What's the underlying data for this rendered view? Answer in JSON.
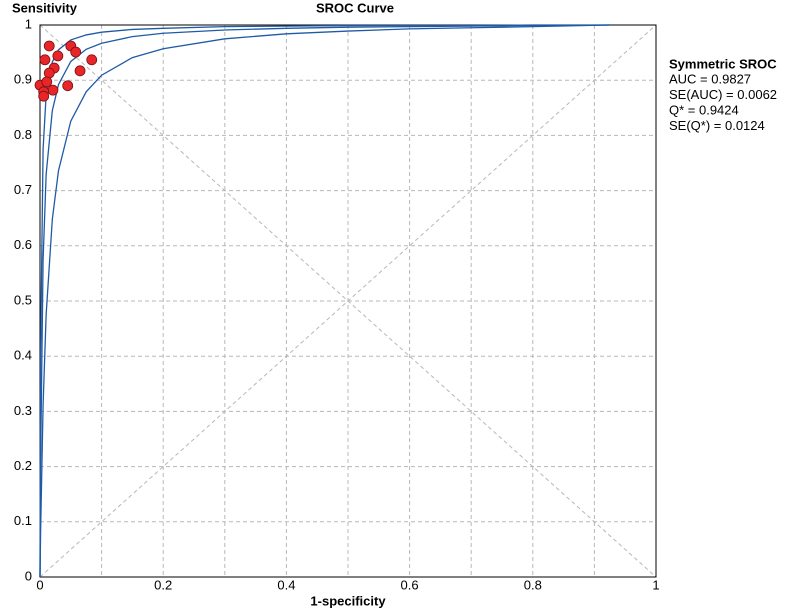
{
  "chart_data": {
    "type": "scatter",
    "title": "SROC Curve",
    "xlabel": "1-specificity",
    "ylabel": "Sensitivity",
    "xlim": [
      0,
      1
    ],
    "ylim": [
      0,
      1
    ],
    "xticks": [
      0,
      0.2,
      0.4,
      0.6,
      0.8,
      1
    ],
    "minor_xticks": [
      0.1,
      0.3,
      0.5,
      0.7,
      0.9
    ],
    "yticks": [
      0,
      0.1,
      0.2,
      0.3,
      0.4,
      0.5,
      0.6,
      0.7,
      0.8,
      0.9,
      1
    ],
    "grid": true,
    "points": {
      "color": "#e8262a",
      "x": [
        0.015,
        0.008,
        0.029,
        0.05,
        0.058,
        0.084,
        0.065,
        0.023,
        0.015,
        0.045,
        0.021,
        0,
        0.006,
        0.006,
        0.011
      ],
      "y": [
        0.962,
        0.937,
        0.944,
        0.962,
        0.951,
        0.937,
        0.917,
        0.922,
        0.913,
        0.89,
        0.882,
        0.891,
        0.879,
        0.871,
        0.897
      ]
    },
    "curve_x": [
      0,
      0.001,
      0.005,
      0.01,
      0.02,
      0.03,
      0.05,
      0.075,
      0.1,
      0.15,
      0.2,
      0.3,
      0.4,
      0.5,
      0.6,
      0.7,
      0.8,
      0.925
    ],
    "curves": [
      {
        "color": "#1f5aa6",
        "values": [
          0,
          0.211,
          0.574,
          0.73,
          0.845,
          0.892,
          0.934,
          0.956,
          0.967,
          0.979,
          0.985,
          0.991,
          0.994,
          0.996,
          0.997,
          0.998,
          0.999,
          1
        ]
      },
      {
        "color": "#1f5aa6",
        "values": [
          0,
          0.083,
          0.311,
          0.476,
          0.648,
          0.736,
          0.826,
          0.879,
          0.909,
          0.941,
          0.957,
          0.975,
          0.984,
          0.989,
          0.993,
          0.995,
          0.997,
          1
        ]
      },
      {
        "color": "#1f5aa6",
        "values": [
          0,
          0.407,
          0.775,
          0.874,
          0.933,
          0.955,
          0.973,
          0.982,
          0.987,
          0.992,
          0.994,
          0.997,
          0.998,
          0.999,
          0.999,
          0.999,
          1,
          1
        ]
      }
    ],
    "annotation": {
      "title": "Symmetric SROC",
      "lines": [
        "AUC = 0.9827",
        "SE(AUC) = 0.0062",
        "Q* = 0.9424",
        "SE(Q*) = 0.0124"
      ]
    }
  }
}
